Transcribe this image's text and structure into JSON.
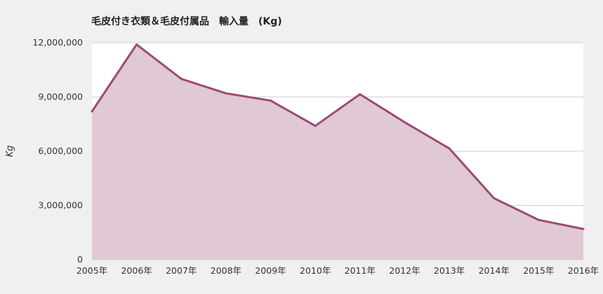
{
  "chart_data": {
    "type": "area",
    "title": "毛皮付き衣類＆毛皮付属品　輸入量　(Kg)",
    "xlabel": "",
    "ylabel": "Kg",
    "categories": [
      "2005年",
      "2006年",
      "2007年",
      "2008年",
      "2009年",
      "2010年",
      "2011年",
      "2012年",
      "2013年",
      "2014年",
      "2015年",
      "2016年"
    ],
    "series": [
      {
        "values": [
          8200000,
          11900000,
          10000000,
          9200000,
          8800000,
          7400000,
          9150000,
          7600000,
          6150000,
          3400000,
          2200000,
          1700000
        ]
      }
    ],
    "yticks": [
      "0",
      "3,000,000",
      "6,000,000",
      "9,000,000",
      "12,000,000"
    ],
    "ylim": [
      0,
      12000000
    ],
    "grid": true,
    "colors": {
      "line": "#9c4a74",
      "fill": "#e0c8d5",
      "plot_bg": "#ffffff",
      "grid": "#cfcfcf"
    }
  }
}
